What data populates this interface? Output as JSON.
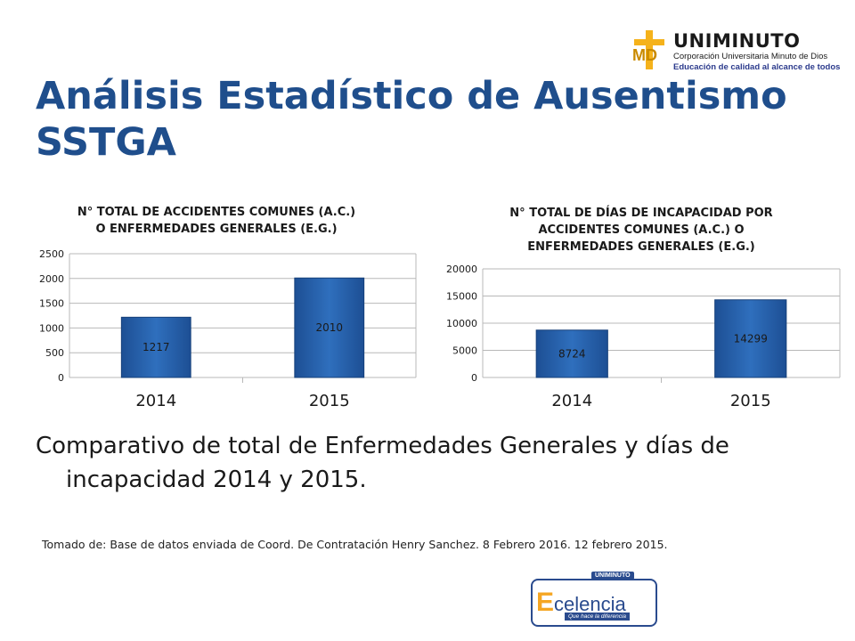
{
  "logo_top": {
    "name": "UNIMINUTO",
    "line1": "Corporación Universitaria Minuto de Dios",
    "line2": "Educación de calidad al alcance de todos"
  },
  "title": "Análisis Estadístico de Ausentismo SSTGA",
  "body_text": "Comparativo de total de Enfermedades Generales y días de incapacidad 2014 y 2015.",
  "source_note": "Tomado de: Base de datos enviada de Coord. De Contratación Henry Sanchez. 8 Febrero 2016. 12 febrero 2015.",
  "logo_bottom": {
    "tag": "UNIMINUTO",
    "word_prefix": "E",
    "word_rest": "celencia",
    "slogan": "Que hace la diferencia"
  },
  "colors": {
    "title": "#1f4e8c",
    "bar": "#2f6fbd",
    "bar_dark": "#1d4f94",
    "grid": "#b8b8b8"
  },
  "chart_data": [
    {
      "type": "bar",
      "title_lines": [
        "N° TOTAL DE ACCIDENTES COMUNES (A.C.)",
        "O ENFERMEDADES GENERALES (E.G.)"
      ],
      "categories": [
        "2014",
        "2015"
      ],
      "values": [
        1217,
        2010
      ],
      "ylim": [
        0,
        2500
      ],
      "yticks": [
        0,
        500,
        1000,
        1500,
        2000,
        2500
      ],
      "grid": true
    },
    {
      "type": "bar",
      "title_lines": [
        "N° TOTAL DE DÍAS DE INCAPACIDAD POR",
        "ACCIDENTES COMUNES (A.C.) O",
        "ENFERMEDADES GENERALES (E.G.)"
      ],
      "categories": [
        "2014",
        "2015"
      ],
      "values": [
        8724,
        14299
      ],
      "ylim": [
        0,
        20000
      ],
      "yticks": [
        0,
        5000,
        10000,
        15000,
        20000
      ],
      "grid": true
    }
  ]
}
